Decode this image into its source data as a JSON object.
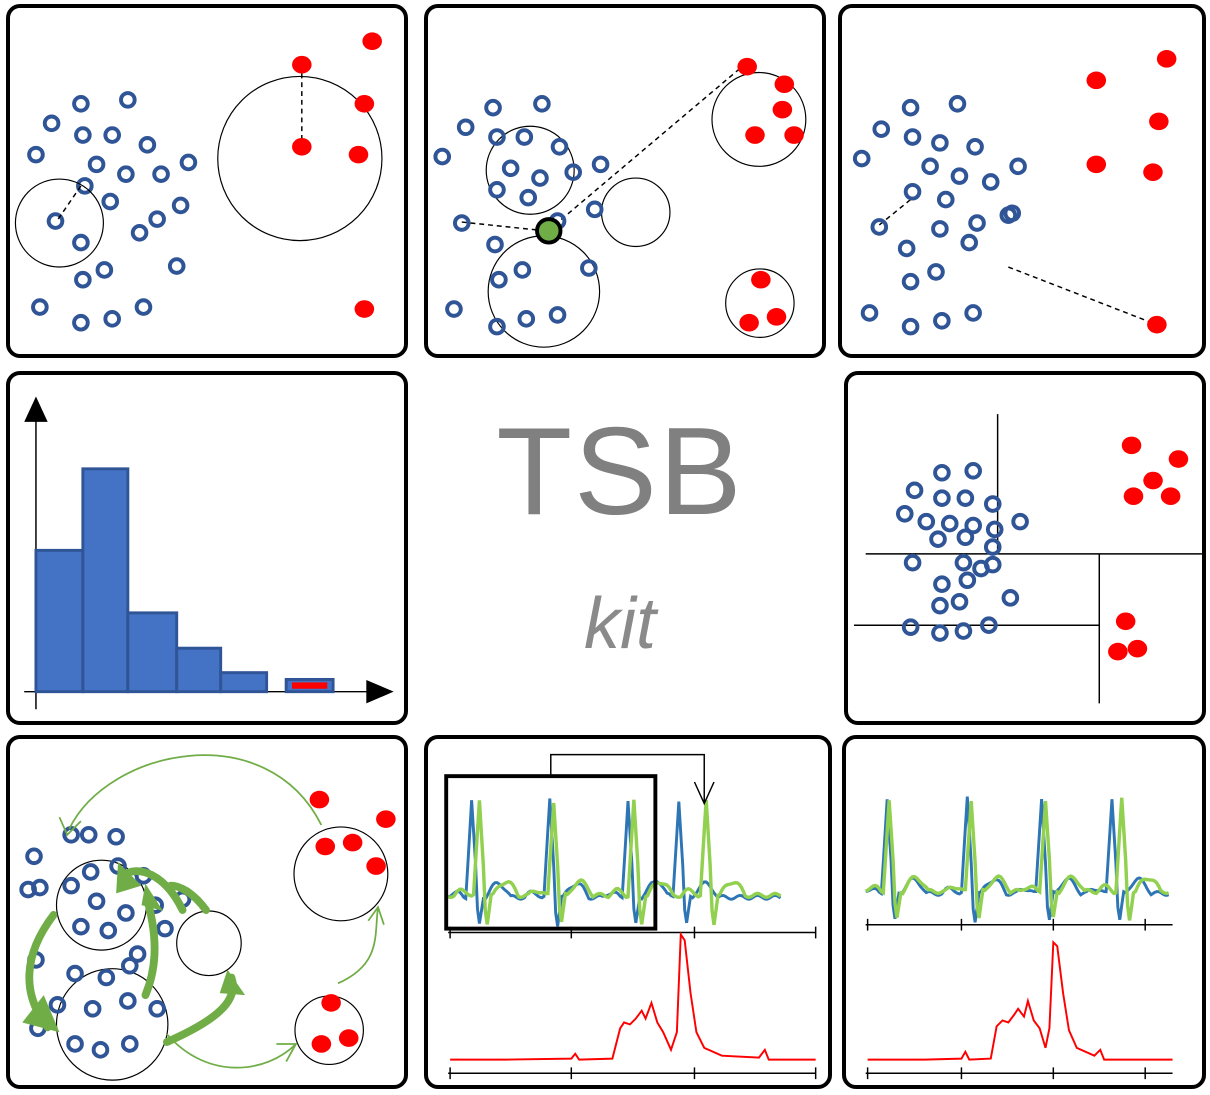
{
  "logo": {
    "main": "TSB",
    "sub": "kit"
  },
  "colors": {
    "normal": "#2f5597",
    "anomaly": "#ff0000",
    "query": "#70ad47",
    "bar": "#4472c4",
    "series_blue": "#2e75b6",
    "series_green": "#92d050",
    "score": "#ff0000",
    "frame": "#000000",
    "text": "#808080"
  },
  "panels": [
    {
      "name": "knn-distance",
      "icon": "knn-distance-icon"
    },
    {
      "name": "lof-density",
      "icon": "local-outlier-factor-icon"
    },
    {
      "name": "nearest-neighbor",
      "icon": "nearest-neighbor-icon"
    },
    {
      "name": "histogram",
      "icon": "histogram-icon"
    },
    {
      "name": "isolation-forest",
      "icon": "isolation-forest-icon"
    },
    {
      "name": "graph-random-walk",
      "icon": "graph-random-walk-icon"
    },
    {
      "name": "forecasting-window",
      "icon": "forecasting-window-icon"
    },
    {
      "name": "reconstruction",
      "icon": "reconstruction-icon"
    }
  ],
  "chart_data": {
    "type": "bar",
    "values": [
      5.2,
      8.2,
      2.9,
      1.6,
      0.7,
      0.45
    ],
    "highlight_index": 5
  }
}
